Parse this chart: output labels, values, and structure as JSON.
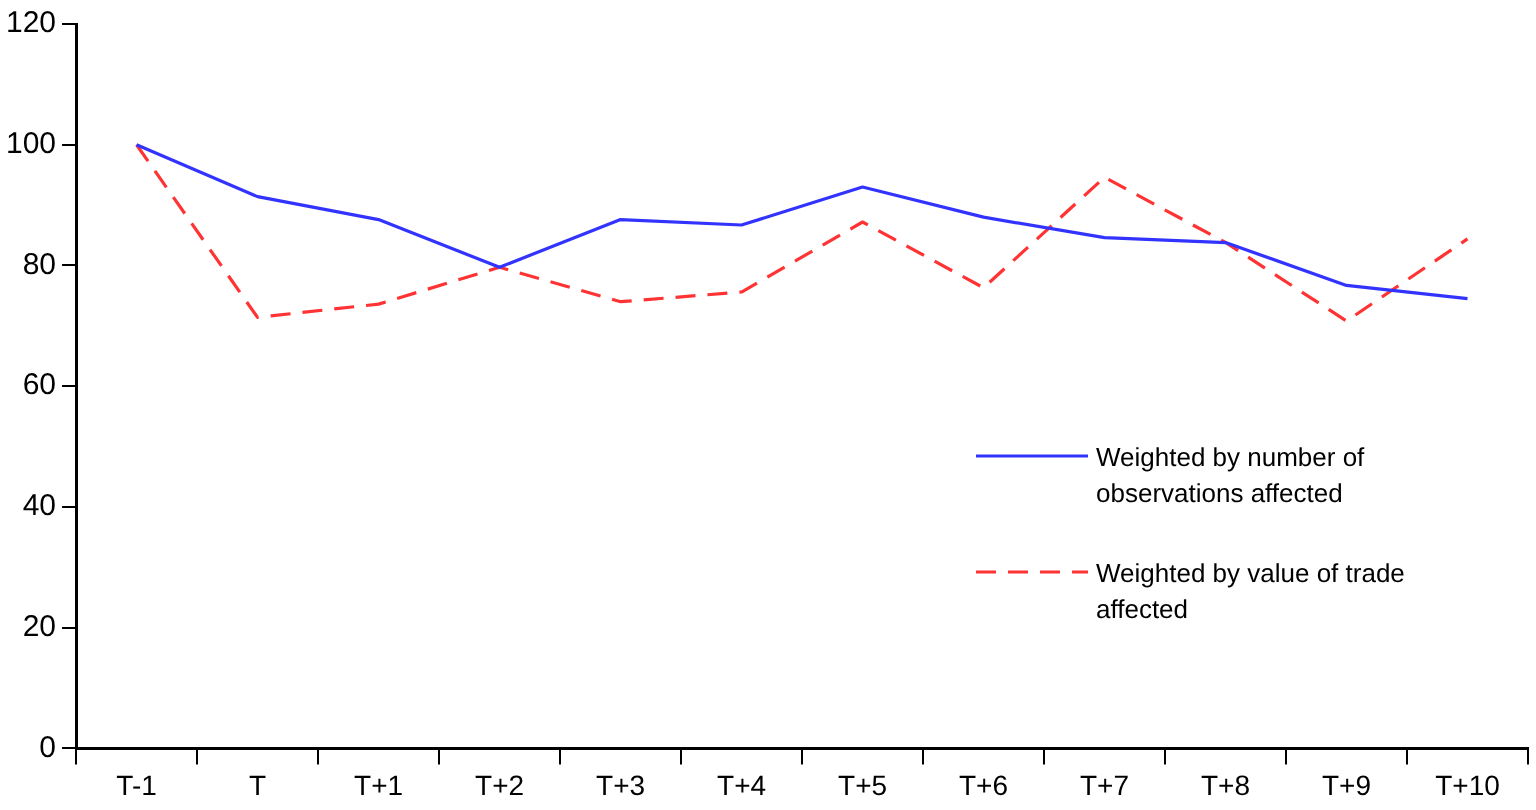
{
  "chart_data": {
    "type": "line",
    "categories": [
      "T-1",
      "T",
      "T+1",
      "T+2",
      "T+3",
      "T+4",
      "T+5",
      "T+6",
      "T+7",
      "T+8",
      "T+9",
      "T+10"
    ],
    "series": [
      {
        "name": "Weighted by number of observations affected",
        "color": "#3333ff",
        "line_style": "solid",
        "values": [
          100,
          91.4,
          87.6,
          79.7,
          87.6,
          86.7,
          93,
          88,
          84.6,
          83.8,
          76.7,
          74.5
        ]
      },
      {
        "name": "Weighted by value of trade affected",
        "color": "#ff3333",
        "line_style": "dashed",
        "values": [
          100,
          71.4,
          73.6,
          79.7,
          74,
          75.6,
          87.2,
          76.3,
          94.6,
          83.8,
          70.8,
          84.4
        ]
      }
    ],
    "ylim": [
      0,
      120
    ],
    "yticks": [
      0,
      20,
      40,
      60,
      80,
      100,
      120
    ],
    "grid": false,
    "legend": "right",
    "marker": "none"
  }
}
